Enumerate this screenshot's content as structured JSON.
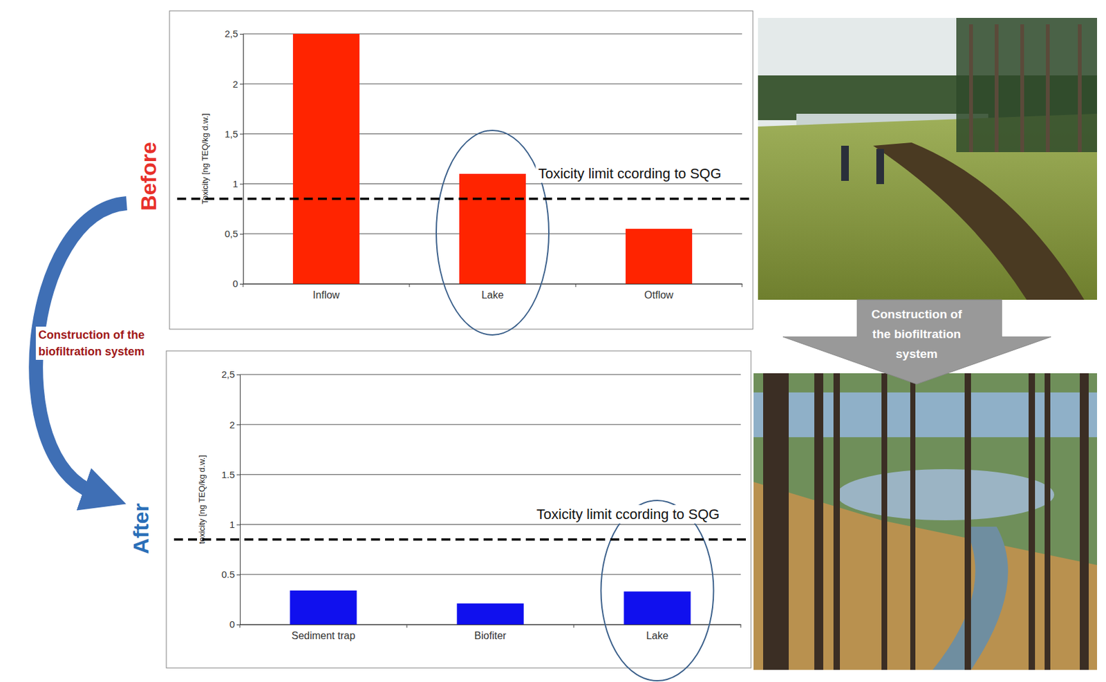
{
  "labels": {
    "before": "Before",
    "after": "After",
    "construction_left": "Construction of the biofiltration system",
    "construction_right": "Construction of the biofiltration system"
  },
  "chart_data": [
    {
      "type": "bar",
      "y_label": "Toxicity [ng TEQ/kg d.w.]",
      "categories": [
        "Inflow",
        "Lake",
        "Otflow"
      ],
      "values": [
        2.5,
        1.1,
        0.55
      ],
      "color": "#ff2400",
      "ylim": [
        0,
        2.5
      ],
      "yticks": [
        0,
        {
          "value": 0.5,
          "label": "0,5"
        },
        1,
        {
          "value": 1.5,
          "label": "1,5"
        },
        2,
        {
          "value": 2.5,
          "label": "2,5"
        }
      ],
      "grid": true,
      "annotations": [
        {
          "text": "Toxicity limit ccording to SQG",
          "y": 0.85
        }
      ]
    },
    {
      "type": "bar",
      "y_label": "toxicity [ng TEQ/kg d.w.]",
      "categories": [
        "Sediment trap",
        "Biofiter",
        "Lake"
      ],
      "values": [
        0.34,
        0.21,
        0.33
      ],
      "color": "#1010ee",
      "ylim": [
        0,
        2.5
      ],
      "yticks": [
        0,
        0.5,
        1,
        1.5,
        2,
        {
          "value": 2.5,
          "label": "2,5"
        }
      ],
      "grid": true,
      "annotations": [
        {
          "text": "Toxicity limit ccording to SQG",
          "y": 0.85
        }
      ]
    }
  ]
}
